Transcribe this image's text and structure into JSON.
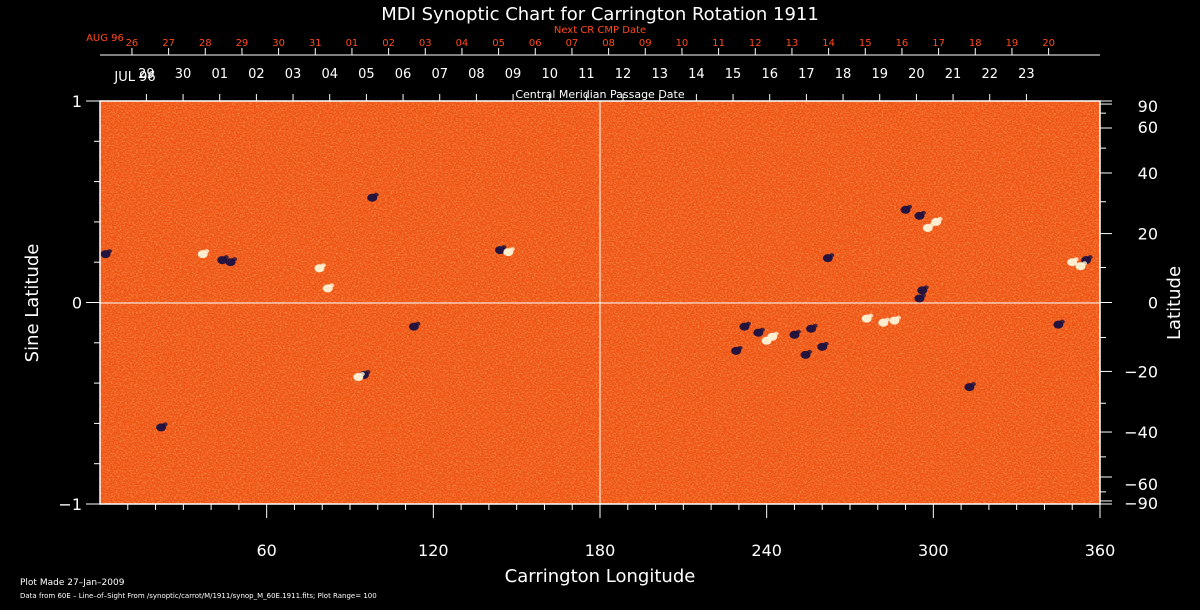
{
  "chart_data": {
    "type": "heatmap",
    "title": "MDI Synoptic Chart for Carrington Rotation 1911",
    "xlabel": "Carrington Longitude",
    "ylabel_left": "Sine Latitude",
    "ylabel_right": "Latitude",
    "xlim": [
      0,
      360
    ],
    "ylim": [
      -1,
      1
    ],
    "x_ticks": [
      60,
      120,
      180,
      240,
      300,
      360
    ],
    "y_ticks_left": [
      {
        "value": 1,
        "label": "1"
      },
      {
        "value": 0,
        "label": "0"
      },
      {
        "value": -1,
        "label": "−1"
      }
    ],
    "y_ticks_right": [
      {
        "deg": 90,
        "label": "90"
      },
      {
        "deg": 60,
        "label": "60"
      },
      {
        "deg": 40,
        "label": "40"
      },
      {
        "deg": 20,
        "label": "20"
      },
      {
        "deg": 0,
        "label": "0"
      },
      {
        "deg": -20,
        "label": "−20"
      },
      {
        "deg": -40,
        "label": "−40"
      },
      {
        "deg": -60,
        "label": "−60"
      },
      {
        "deg": -90,
        "label": "−90"
      }
    ],
    "gridlines": {
      "x": [
        180
      ],
      "y": [
        0
      ]
    },
    "top_axis_cmp": {
      "label": "Central Meridian Passage Date",
      "month_label": "JUL 96",
      "days": [
        "23",
        "22",
        "21",
        "20",
        "19",
        "18",
        "17",
        "16",
        "15",
        "14",
        "13",
        "12",
        "11",
        "10",
        "09",
        "08",
        "07",
        "06",
        "05",
        "04",
        "03",
        "02",
        "01",
        "30",
        "29"
      ],
      "longitudes": [
        333.5,
        320.3,
        307.1,
        293.9,
        280.7,
        267.5,
        254.3,
        241.1,
        227.9,
        214.7,
        201.5,
        188.3,
        175.1,
        161.9,
        148.7,
        135.5,
        122.3,
        109.1,
        95.9,
        82.7,
        69.5,
        56.3,
        43.1,
        29.9,
        16.7
      ]
    },
    "top_axis_next_cmp": {
      "label": "Next CR CMP Date",
      "month_label": "AUG 96",
      "days": [
        "20",
        "19",
        "18",
        "17",
        "16",
        "15",
        "14",
        "13",
        "12",
        "11",
        "10",
        "09",
        "08",
        "07",
        "06",
        "05",
        "04",
        "03",
        "02",
        "01",
        "31",
        "30",
        "29",
        "28",
        "27",
        "26"
      ],
      "longitudes": [
        341.5,
        328.3,
        315.1,
        301.9,
        288.7,
        275.5,
        262.3,
        249.1,
        235.9,
        222.7,
        209.5,
        196.3,
        183.1,
        169.9,
        156.7,
        143.5,
        130.3,
        117.1,
        103.9,
        90.7,
        77.5,
        64.3,
        51.1,
        37.9,
        24.7,
        11.5
      ]
    },
    "magnetic_features": [
      {
        "lon": 44,
        "sinlat": 0.21,
        "polarity": "negative"
      },
      {
        "lon": 47,
        "sinlat": 0.2,
        "polarity": "negative"
      },
      {
        "lon": 37,
        "sinlat": 0.24,
        "polarity": "positive"
      },
      {
        "lon": 79,
        "sinlat": 0.17,
        "polarity": "positive"
      },
      {
        "lon": 82,
        "sinlat": 0.07,
        "polarity": "positive"
      },
      {
        "lon": 98,
        "sinlat": 0.52,
        "polarity": "negative"
      },
      {
        "lon": 95,
        "sinlat": -0.36,
        "polarity": "negative"
      },
      {
        "lon": 93,
        "sinlat": -0.37,
        "polarity": "positive"
      },
      {
        "lon": 113,
        "sinlat": -0.12,
        "polarity": "negative"
      },
      {
        "lon": 144,
        "sinlat": 0.26,
        "polarity": "negative"
      },
      {
        "lon": 147,
        "sinlat": 0.25,
        "polarity": "positive"
      },
      {
        "lon": 22,
        "sinlat": -0.62,
        "polarity": "negative"
      },
      {
        "lon": 2,
        "sinlat": 0.24,
        "polarity": "negative"
      },
      {
        "lon": 290,
        "sinlat": 0.46,
        "polarity": "negative"
      },
      {
        "lon": 295,
        "sinlat": 0.43,
        "polarity": "negative"
      },
      {
        "lon": 298,
        "sinlat": 0.37,
        "polarity": "positive"
      },
      {
        "lon": 301,
        "sinlat": 0.4,
        "polarity": "positive"
      },
      {
        "lon": 296,
        "sinlat": 0.06,
        "polarity": "negative"
      },
      {
        "lon": 295,
        "sinlat": 0.02,
        "polarity": "negative"
      },
      {
        "lon": 232,
        "sinlat": -0.12,
        "polarity": "negative"
      },
      {
        "lon": 237,
        "sinlat": -0.15,
        "polarity": "negative"
      },
      {
        "lon": 240,
        "sinlat": -0.19,
        "polarity": "positive"
      },
      {
        "lon": 242,
        "sinlat": -0.17,
        "polarity": "positive"
      },
      {
        "lon": 229,
        "sinlat": -0.24,
        "polarity": "negative"
      },
      {
        "lon": 250,
        "sinlat": -0.16,
        "polarity": "negative"
      },
      {
        "lon": 256,
        "sinlat": -0.13,
        "polarity": "negative"
      },
      {
        "lon": 260,
        "sinlat": -0.22,
        "polarity": "negative"
      },
      {
        "lon": 254,
        "sinlat": -0.26,
        "polarity": "negative"
      },
      {
        "lon": 276,
        "sinlat": -0.08,
        "polarity": "positive"
      },
      {
        "lon": 282,
        "sinlat": -0.1,
        "polarity": "positive"
      },
      {
        "lon": 286,
        "sinlat": -0.09,
        "polarity": "positive"
      },
      {
        "lon": 262,
        "sinlat": 0.22,
        "polarity": "negative"
      },
      {
        "lon": 355,
        "sinlat": 0.21,
        "polarity": "negative"
      },
      {
        "lon": 350,
        "sinlat": 0.2,
        "polarity": "positive"
      },
      {
        "lon": 353,
        "sinlat": 0.18,
        "polarity": "positive"
      },
      {
        "lon": 345,
        "sinlat": -0.11,
        "polarity": "negative"
      },
      {
        "lon": 313,
        "sinlat": -0.42,
        "polarity": "negative"
      }
    ]
  },
  "footer": {
    "plot_made": "Plot Made 27–Jan–2009",
    "data_source": "Data from 60E – Line–of–Sight From /synoptic/carrot/M/1911/synop_M_60E.1911.fits; Plot Range= 100"
  },
  "colors": {
    "background": "#000000",
    "text": "#ffffff",
    "next_cmp": "#ff4a1a",
    "map_base": "#ff5a10",
    "map_bright": "#ffd060",
    "negative": "#1a1040",
    "positive": "#fff4d8"
  }
}
